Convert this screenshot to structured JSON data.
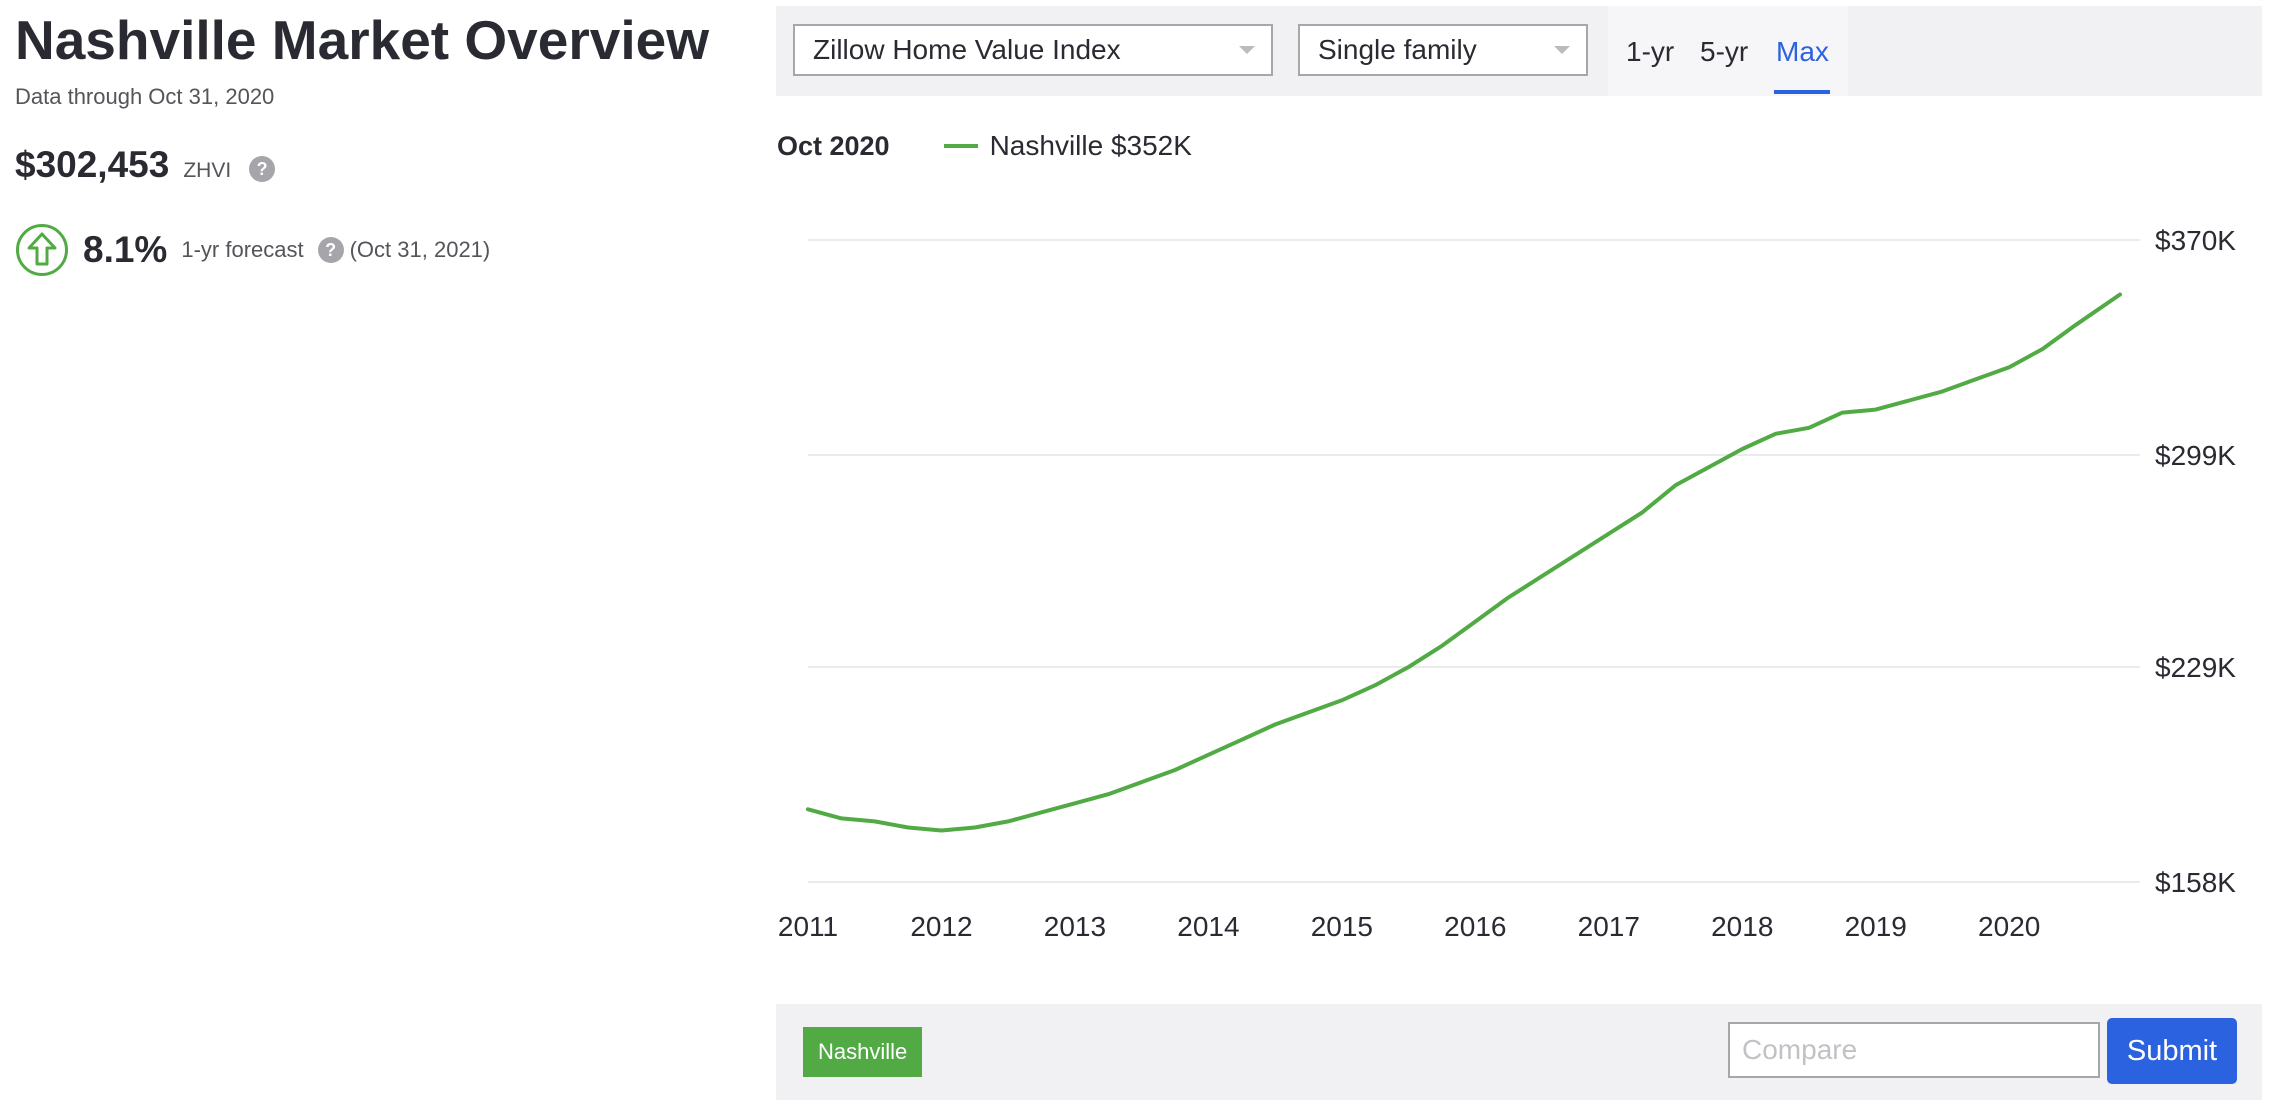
{
  "header": {
    "title": "Nashville Market Overview",
    "subtitle": "Data through Oct 31, 2020"
  },
  "summary": {
    "zhvi_value": "$302,453",
    "zhvi_label": "ZHVI",
    "help_glyph": "?",
    "forecast_value": "8.1%",
    "forecast_label": "1-yr forecast",
    "forecast_date": "(Oct 31, 2021)",
    "forecast_icon": "arrow-up-circle-icon",
    "forecast_color": "#52aa45"
  },
  "controls": {
    "metric_select": "Zillow Home Value Index",
    "type_select": "Single family",
    "range_tabs": [
      {
        "label": "1-yr",
        "active": false
      },
      {
        "label": "5-yr",
        "active": false
      },
      {
        "label": "Max",
        "active": true
      }
    ],
    "accent_color": "#2a62e0"
  },
  "legend": {
    "date": "Oct 2020",
    "series_label": "Nashville $352K"
  },
  "compare": {
    "tag": "Nashville",
    "placeholder": "Compare",
    "value": "",
    "submit_label": "Submit"
  },
  "chart_data": {
    "type": "line",
    "title": "",
    "xlabel": "",
    "ylabel": "",
    "x_ticks": [
      "2011",
      "2012",
      "2013",
      "2014",
      "2015",
      "2016",
      "2017",
      "2018",
      "2019",
      "2020"
    ],
    "y_ticks": [
      "$158K",
      "$229K",
      "$299K",
      "$370K"
    ],
    "xlim": [
      2011.0,
      2021.0
    ],
    "ylim": [
      158,
      370
    ],
    "grid": true,
    "legend_position": "top-left",
    "series": [
      {
        "name": "Nashville",
        "color": "#52aa45",
        "x": [
          2011.0,
          2011.25,
          2011.5,
          2011.75,
          2012.0,
          2012.25,
          2012.5,
          2012.75,
          2013.0,
          2013.25,
          2013.5,
          2013.75,
          2014.0,
          2014.25,
          2014.5,
          2014.75,
          2015.0,
          2015.25,
          2015.5,
          2015.75,
          2016.0,
          2016.25,
          2016.5,
          2016.75,
          2017.0,
          2017.25,
          2017.5,
          2017.75,
          2018.0,
          2018.25,
          2018.5,
          2018.75,
          2019.0,
          2019.25,
          2019.5,
          2019.75,
          2020.0,
          2020.25,
          2020.5,
          2020.83
        ],
        "y": [
          182,
          179,
          178,
          176,
          175,
          176,
          178,
          181,
          184,
          187,
          191,
          195,
          200,
          205,
          210,
          214,
          218,
          223,
          229,
          236,
          244,
          252,
          259,
          266,
          273,
          280,
          289,
          295,
          301,
          306,
          308,
          313,
          314,
          317,
          320,
          324,
          328,
          334,
          342,
          352
        ]
      }
    ]
  }
}
